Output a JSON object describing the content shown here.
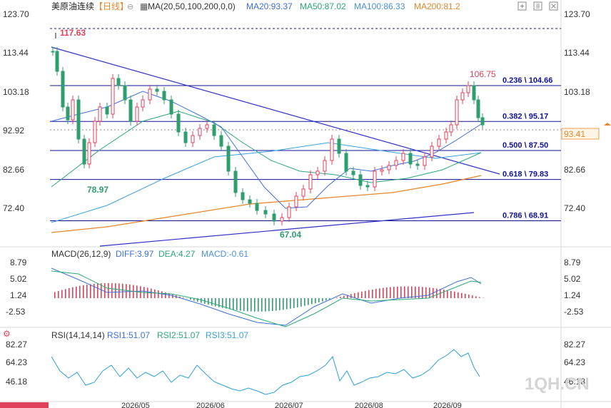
{
  "header": {
    "symbol": "美原油连续",
    "period": "【日线】",
    "ma_legend": "MA(20,50,100,200,0,0)",
    "ma_values": [
      {
        "name": "MA20",
        "text": "MA20:93.37",
        "color": "#3d6fd9"
      },
      {
        "name": "MA50",
        "text": "MA50:87.02",
        "color": "#2aa876"
      },
      {
        "name": "MA100",
        "text": "MA100:86.33",
        "color": "#4a90d9"
      },
      {
        "name": "MA200",
        "text": "MA200:81.2",
        "color": "#e8862a"
      }
    ]
  },
  "macd_legend": {
    "title": "MACD(26,12,9)",
    "diff": "DIFF:3.97",
    "dea": "DEA:4.27",
    "macd": "MACD:-0.61"
  },
  "rsi_legend": {
    "title": "RSI(14,14,14)",
    "rsi1": "RSI1:51.07",
    "rsi2": "RSI2:51.07",
    "rsi3": "RSI3:51.07"
  },
  "watermark": "1QH.CN",
  "colors": {
    "up": "#e0405a",
    "down": "#2e9e6e",
    "fib": "#10109a",
    "trend": "#3030c8",
    "ma200": "#e8862a",
    "ma100": "#3aa0e0",
    "ma50": "#2aa876",
    "ma20": "#3d6fd9"
  },
  "chart_data": {
    "type": "candlestick",
    "price_axis": {
      "ticks": [
        "123.70",
        "113.44",
        "103.18",
        "92.92",
        "82.66",
        "72.40"
      ],
      "ylim": [
        67.0,
        123.7
      ]
    },
    "x_labels": [
      "2026/05",
      "2026/06",
      "2026/07",
      "2026/08",
      "2026/09"
    ],
    "current_price": "93.41",
    "high_label": "117.63",
    "low_label": "78.97",
    "low2_label": "67.04",
    "recent_high_label": "106.75",
    "fib_levels": [
      {
        "label": "0.236 \\ 104.66",
        "value": 104.66
      },
      {
        "label": "0.382 \\ 95.17",
        "value": 95.17
      },
      {
        "label": "0.500 \\ 87.50",
        "value": 87.5
      },
      {
        "label": "0.618 \\ 79.83",
        "value": 79.83
      },
      {
        "label": "0.786 \\ 68.91",
        "value": 68.91
      }
    ],
    "macd_axis": {
      "ticks": [
        "8.79",
        "5.02",
        "1.24",
        "-2.53"
      ]
    },
    "rsi_axis": {
      "ticks": [
        "82.27",
        "64.23",
        "46.18"
      ]
    }
  }
}
